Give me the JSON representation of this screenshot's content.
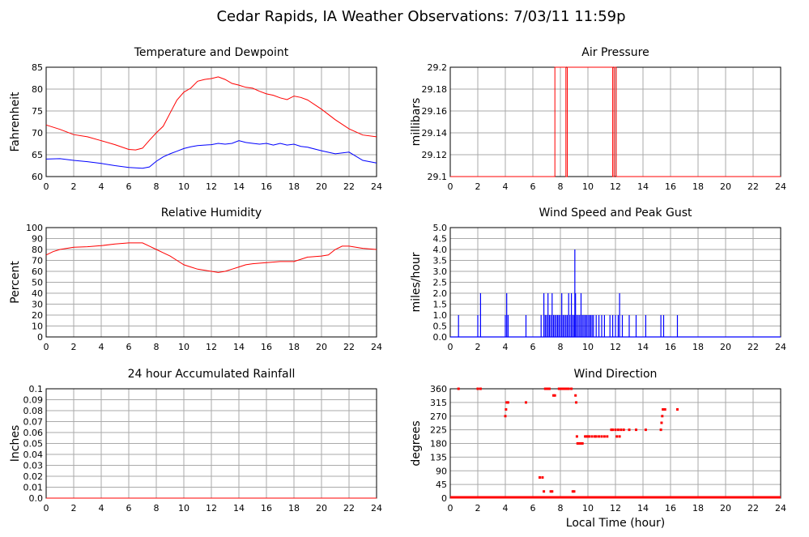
{
  "page": {
    "title": "Cedar Rapids, IA Weather Observations: 7/03/11 11:59p"
  },
  "colors": {
    "temperature": "#ff0000",
    "dewpoint": "#0000ff",
    "grid": "#aaaaaa"
  },
  "chart_data": [
    {
      "id": "temp",
      "type": "line",
      "title": "Temperature and Dewpoint",
      "xlabel": "",
      "ylabel": "Fahrenheit",
      "xlim": [
        0,
        24
      ],
      "ylim": [
        60,
        85
      ],
      "xticks": [
        0,
        2,
        4,
        6,
        8,
        10,
        12,
        14,
        16,
        18,
        20,
        22,
        24
      ],
      "yticks": [
        60,
        65,
        70,
        75,
        80,
        85
      ],
      "grid": true,
      "series": [
        {
          "color": "#ff0000",
          "x": [
            0,
            1,
            2,
            3,
            4,
            5,
            6,
            6.5,
            7,
            7.5,
            8,
            8.5,
            9,
            9.5,
            10,
            10.5,
            11,
            11.5,
            12,
            12.5,
            13,
            13.5,
            14,
            14.5,
            15,
            15.5,
            16,
            16.5,
            17,
            17.5,
            18,
            18.5,
            19,
            20,
            21,
            22,
            23,
            24
          ],
          "y": [
            71.8,
            70.8,
            69.6,
            69.1,
            68.2,
            67.3,
            66.2,
            66.1,
            66.5,
            68.3,
            70.0,
            71.5,
            74.5,
            77.5,
            79.3,
            80.2,
            81.8,
            82.2,
            82.4,
            82.8,
            82.2,
            81.3,
            80.9,
            80.4,
            80.2,
            79.5,
            78.9,
            78.6,
            78.0,
            77.6,
            78.4,
            78.1,
            77.5,
            75.4,
            73.0,
            70.9,
            69.5,
            69.1
          ]
        },
        {
          "color": "#0000ff",
          "x": [
            0,
            1,
            2,
            3,
            4,
            5,
            6,
            6.5,
            7,
            7.5,
            8,
            8.5,
            9,
            9.5,
            10,
            10.5,
            11,
            11.5,
            12,
            12.5,
            13,
            13.5,
            14,
            14.5,
            15,
            15.5,
            16,
            16.5,
            17,
            17.5,
            18,
            18.5,
            19,
            20,
            21,
            22,
            23,
            24
          ],
          "y": [
            64.0,
            64.1,
            63.7,
            63.4,
            63.0,
            62.5,
            62.1,
            62.0,
            61.9,
            62.2,
            63.5,
            64.5,
            65.2,
            65.8,
            66.4,
            66.8,
            67.1,
            67.2,
            67.3,
            67.6,
            67.4,
            67.6,
            68.2,
            67.8,
            67.6,
            67.4,
            67.6,
            67.2,
            67.6,
            67.2,
            67.4,
            66.9,
            66.7,
            65.9,
            65.2,
            65.6,
            63.7,
            63.1
          ]
        }
      ]
    },
    {
      "id": "pressure",
      "type": "line",
      "title": "Air Pressure",
      "xlabel": "",
      "ylabel": "millibars",
      "xlim": [
        0,
        24
      ],
      "ylim": [
        29.1,
        29.2
      ],
      "xticks": [
        0,
        2,
        4,
        6,
        8,
        10,
        12,
        14,
        16,
        18,
        20,
        22,
        24
      ],
      "yticks": [
        29.1,
        29.12,
        29.14,
        29.16,
        29.18,
        29.2
      ],
      "ytick_labels": [
        "29.1",
        "29.12",
        "29.14",
        "29.16",
        "29.18",
        "29.2"
      ],
      "grid": true,
      "series": [
        {
          "color": "#ff0000",
          "x": [
            0,
            7.6,
            7.6,
            8.4,
            8.4,
            8.5,
            8.5,
            9.9,
            9.9,
            11.8,
            11.8,
            11.9,
            11.9,
            12.05,
            12.05,
            24
          ],
          "y": [
            29.1,
            29.1,
            29.2,
            29.2,
            29.1,
            29.1,
            29.2,
            29.2,
            29.2,
            29.2,
            29.1,
            29.1,
            29.2,
            29.2,
            29.1,
            29.1
          ]
        }
      ]
    },
    {
      "id": "humidity",
      "type": "line",
      "title": "Relative Humidity",
      "xlabel": "",
      "ylabel": "Percent",
      "xlim": [
        0,
        24
      ],
      "ylim": [
        0,
        100
      ],
      "xticks": [
        0,
        2,
        4,
        6,
        8,
        10,
        12,
        14,
        16,
        18,
        20,
        22,
        24
      ],
      "yticks": [
        0,
        10,
        20,
        30,
        40,
        50,
        60,
        70,
        80,
        90,
        100
      ],
      "grid": true,
      "series": [
        {
          "color": "#ff0000",
          "x": [
            0,
            0.5,
            1,
            2,
            3,
            4,
            5,
            6,
            6.5,
            7,
            7.5,
            8,
            8.5,
            9,
            9.5,
            10,
            10.5,
            11,
            11.5,
            12,
            12.5,
            13,
            13.5,
            14,
            14.5,
            15,
            16,
            17,
            18,
            18.5,
            19,
            20,
            20.5,
            21,
            21.5,
            22,
            23,
            24
          ],
          "y": [
            75,
            78,
            80,
            82,
            82.5,
            83.5,
            85,
            86,
            86,
            86,
            83,
            80,
            77,
            74,
            70,
            66,
            64,
            62,
            61,
            60,
            59,
            60,
            62,
            64,
            66,
            67,
            68,
            69,
            69,
            71,
            73,
            74,
            75,
            80,
            83,
            83,
            81,
            80
          ]
        }
      ]
    },
    {
      "id": "wind",
      "type": "bar",
      "title": "Wind Speed and Peak Gust",
      "xlabel": "",
      "ylabel": "miles/hour",
      "xlim": [
        0,
        24
      ],
      "ylim": [
        0,
        5
      ],
      "xticks": [
        0,
        2,
        4,
        6,
        8,
        10,
        12,
        14,
        16,
        18,
        20,
        22,
        24
      ],
      "yticks": [
        0,
        0.5,
        1,
        1.5,
        2,
        2.5,
        3,
        3.5,
        4,
        4.5,
        5
      ],
      "ytick_labels": [
        "0.0",
        "0.5",
        "1.0",
        "1.5",
        "2.0",
        "2.5",
        "3.0",
        "3.5",
        "4.0",
        "4.5",
        "5.0"
      ],
      "grid": true,
      "color": "#0000ff",
      "x": [
        0.6,
        2.0,
        2.2,
        4.0,
        4.1,
        4.2,
        5.5,
        6.6,
        6.8,
        6.9,
        7.0,
        7.1,
        7.2,
        7.3,
        7.4,
        7.5,
        7.6,
        7.7,
        7.8,
        7.9,
        8.0,
        8.1,
        8.2,
        8.3,
        8.4,
        8.5,
        8.6,
        8.7,
        8.8,
        8.9,
        9.0,
        9.05,
        9.1,
        9.2,
        9.3,
        9.4,
        9.5,
        9.6,
        9.7,
        9.8,
        9.9,
        10.0,
        10.1,
        10.2,
        10.3,
        10.4,
        10.6,
        10.8,
        11.0,
        11.2,
        11.6,
        11.8,
        12.0,
        12.2,
        12.3,
        12.5,
        13.0,
        13.5,
        14.2,
        15.3,
        15.5,
        16.5
      ],
      "values": [
        1,
        1,
        2,
        1,
        2,
        1,
        1,
        1,
        2,
        1,
        1,
        2,
        1,
        1,
        2,
        1,
        1,
        1,
        1,
        1,
        1,
        2,
        1,
        1,
        1,
        1,
        2,
        1,
        2,
        1,
        1,
        4,
        2,
        1,
        1,
        1,
        2,
        1,
        1,
        1,
        1,
        1,
        1,
        1,
        1,
        1,
        1,
        1,
        1,
        1,
        1,
        1,
        1,
        1,
        2,
        1,
        1,
        1,
        1,
        1,
        1,
        1
      ]
    },
    {
      "id": "rain",
      "type": "line",
      "title": "24 hour Accumulated Rainfall",
      "xlabel": "",
      "ylabel": "Inches",
      "xlim": [
        0,
        24
      ],
      "ylim": [
        0,
        0.1
      ],
      "xticks": [
        0,
        2,
        4,
        6,
        8,
        10,
        12,
        14,
        16,
        18,
        20,
        22,
        24
      ],
      "yticks": [
        0,
        0.01,
        0.02,
        0.03,
        0.04,
        0.05,
        0.06,
        0.07,
        0.08,
        0.09,
        0.1
      ],
      "ytick_labels": [
        "0.0",
        "0.01",
        "0.02",
        "0.03",
        "0.04",
        "0.05",
        "0.06",
        "0.07",
        "0.08",
        "0.09",
        "0.1"
      ],
      "grid": true,
      "series": [
        {
          "color": "#ff0000",
          "x": [
            0,
            24
          ],
          "y": [
            0,
            0
          ]
        }
      ]
    },
    {
      "id": "direction",
      "type": "scatter",
      "title": "Wind Direction",
      "xlabel": "Local Time (hour)",
      "ylabel": "degrees",
      "xlim": [
        0,
        24
      ],
      "ylim": [
        0,
        360
      ],
      "xticks": [
        0,
        2,
        4,
        6,
        8,
        10,
        12,
        14,
        16,
        18,
        20,
        22,
        24
      ],
      "yticks": [
        0,
        45,
        90,
        135,
        180,
        225,
        270,
        315,
        360
      ],
      "grid": true,
      "color": "#ff0000",
      "baseline_zero": true,
      "points": [
        [
          0.6,
          360
        ],
        [
          2.0,
          360
        ],
        [
          2.2,
          360
        ],
        [
          4.0,
          270
        ],
        [
          4.05,
          292
        ],
        [
          4.1,
          315
        ],
        [
          4.2,
          315
        ],
        [
          5.5,
          315
        ],
        [
          6.5,
          68
        ],
        [
          6.7,
          68
        ],
        [
          6.8,
          22
        ],
        [
          6.9,
          360
        ],
        [
          7.0,
          360
        ],
        [
          7.1,
          360
        ],
        [
          7.2,
          360
        ],
        [
          7.3,
          22
        ],
        [
          7.4,
          22
        ],
        [
          7.5,
          338
        ],
        [
          7.6,
          338
        ],
        [
          7.9,
          360
        ],
        [
          8.0,
          360
        ],
        [
          8.1,
          360
        ],
        [
          8.2,
          360
        ],
        [
          8.3,
          360
        ],
        [
          8.4,
          360
        ],
        [
          8.5,
          360
        ],
        [
          8.6,
          360
        ],
        [
          8.8,
          360
        ],
        [
          8.9,
          22
        ],
        [
          9.0,
          22
        ],
        [
          9.1,
          338
        ],
        [
          9.15,
          315
        ],
        [
          9.2,
          203
        ],
        [
          9.25,
          180
        ],
        [
          9.35,
          180
        ],
        [
          9.5,
          180
        ],
        [
          9.6,
          180
        ],
        [
          9.8,
          203
        ],
        [
          9.9,
          203
        ],
        [
          10.0,
          203
        ],
        [
          10.1,
          203
        ],
        [
          10.3,
          203
        ],
        [
          10.5,
          203
        ],
        [
          10.6,
          203
        ],
        [
          10.8,
          203
        ],
        [
          11.0,
          203
        ],
        [
          11.2,
          203
        ],
        [
          11.4,
          203
        ],
        [
          11.7,
          225
        ],
        [
          11.8,
          225
        ],
        [
          12.0,
          225
        ],
        [
          12.1,
          203
        ],
        [
          12.2,
          225
        ],
        [
          12.3,
          203
        ],
        [
          12.4,
          225
        ],
        [
          12.6,
          225
        ],
        [
          13.0,
          225
        ],
        [
          13.5,
          225
        ],
        [
          14.2,
          225
        ],
        [
          15.3,
          225
        ],
        [
          15.35,
          248
        ],
        [
          15.4,
          270
        ],
        [
          15.45,
          292
        ],
        [
          15.5,
          292
        ],
        [
          15.6,
          292
        ],
        [
          16.5,
          292
        ]
      ]
    }
  ]
}
